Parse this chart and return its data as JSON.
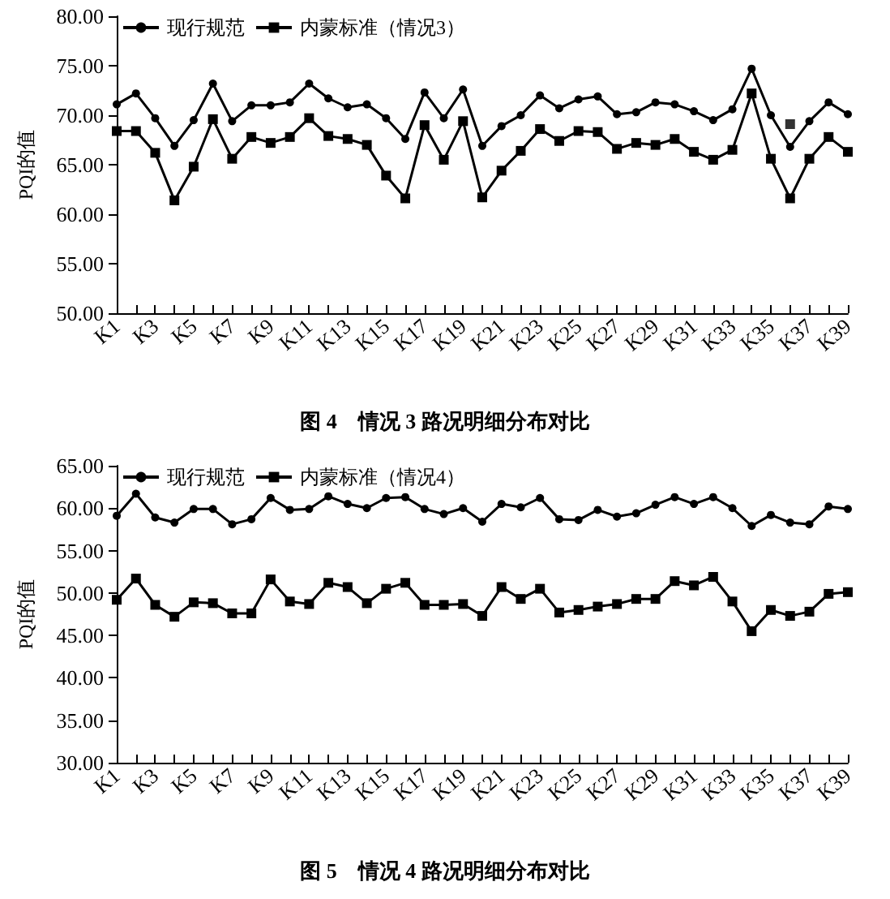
{
  "chart_data": [
    {
      "type": "line",
      "title": "图 4　情况 3 路况明细分布对比",
      "ylabel": "PQI的值",
      "categories": [
        "K1",
        null,
        "K3",
        null,
        "K5",
        null,
        "K7",
        null,
        "K9",
        null,
        "K11",
        null,
        "K13",
        null,
        "K15",
        null,
        "K17",
        null,
        "K19",
        null,
        "K21",
        null,
        "K23",
        null,
        "K25",
        null,
        "K27",
        null,
        "K29",
        null,
        "K31",
        null,
        "K33",
        null,
        "K35",
        null,
        "K37",
        null,
        "K39"
      ],
      "series": [
        {
          "name": "现行规范",
          "color": "#000000",
          "marker": "circle",
          "values": [
            71.1,
            72.2,
            69.7,
            66.9,
            69.5,
            73.2,
            69.4,
            71.0,
            71.0,
            71.3,
            73.2,
            71.7,
            70.8,
            71.1,
            69.7,
            67.6,
            72.3,
            69.7,
            72.6,
            66.9,
            68.9,
            70.0,
            72.0,
            70.7,
            71.6,
            71.9,
            70.1,
            70.3,
            71.3,
            71.1,
            70.4,
            69.5,
            70.6,
            74.7,
            70.0,
            66.8,
            69.4,
            71.3,
            70.1
          ]
        },
        {
          "name": "内蒙标准（情况3）",
          "color": "#000000",
          "marker": "square",
          "values": [
            68.4,
            68.4,
            66.2,
            61.4,
            64.8,
            69.6,
            65.6,
            67.8,
            67.2,
            67.8,
            69.7,
            67.9,
            67.6,
            67.0,
            63.9,
            61.6,
            69.0,
            65.5,
            69.4,
            61.7,
            64.4,
            66.4,
            68.6,
            67.4,
            68.4,
            68.3,
            66.6,
            67.2,
            67.0,
            67.6,
            66.3,
            65.5,
            66.5,
            72.2,
            65.6,
            61.6,
            65.6,
            67.8,
            66.3
          ]
        },
        {
          "type": "scatter",
          "color": "#000000",
          "marker": "square",
          "values": [
            null,
            null,
            null,
            null,
            null,
            null,
            null,
            null,
            null,
            null,
            null,
            null,
            null,
            null,
            null,
            null,
            null,
            null,
            null,
            null,
            null,
            null,
            null,
            null,
            null,
            null,
            null,
            null,
            null,
            null,
            null,
            null,
            null,
            null,
            null,
            69.1,
            null,
            null,
            null
          ]
        }
      ],
      "ylim": [
        50,
        80
      ],
      "yticks": [
        {
          "value": 50,
          "label": "50.00"
        },
        {
          "value": 55,
          "label": "55.00"
        },
        {
          "value": 60,
          "label": "60.00"
        },
        {
          "value": 65,
          "label": "65.00"
        },
        {
          "value": 70,
          "label": "70.00"
        },
        {
          "value": 75,
          "label": "75.00"
        },
        {
          "value": 80,
          "label": "80.00"
        }
      ],
      "grid": false,
      "legend": "top"
    },
    {
      "type": "line",
      "title": "图 5　情况 4 路况明细分布对比",
      "ylabel": "PQI的值",
      "categories": [
        "K1",
        null,
        "K3",
        null,
        "K5",
        null,
        "K7",
        null,
        "K9",
        null,
        "K11",
        null,
        "K13",
        null,
        "K15",
        null,
        "K17",
        null,
        "K19",
        null,
        "K21",
        null,
        "K23",
        null,
        "K25",
        null,
        "K27",
        null,
        "K29",
        null,
        "K31",
        null,
        "K33",
        null,
        "K35",
        null,
        "K37",
        null,
        "K39"
      ],
      "series": [
        {
          "name": "现行规范",
          "color": "#000000",
          "marker": "circle",
          "values": [
            59.1,
            61.7,
            58.9,
            58.3,
            59.9,
            59.9,
            58.1,
            58.7,
            61.2,
            59.8,
            59.9,
            61.4,
            60.5,
            60.0,
            61.2,
            61.3,
            59.9,
            59.3,
            60.0,
            58.4,
            60.5,
            60.1,
            61.2,
            58.7,
            58.6,
            59.8,
            59.0,
            59.4,
            60.4,
            61.3,
            60.5,
            61.3,
            60.0,
            57.9,
            59.2,
            58.3,
            58.1,
            60.2,
            59.9
          ]
        },
        {
          "name": "内蒙标准（情况4）",
          "color": "#000000",
          "marker": "square",
          "values": [
            49.2,
            51.7,
            48.6,
            47.2,
            48.9,
            48.8,
            47.6,
            47.6,
            51.6,
            49.0,
            48.7,
            51.2,
            50.7,
            48.8,
            50.5,
            51.2,
            48.6,
            48.6,
            48.7,
            47.3,
            50.7,
            49.3,
            50.5,
            47.7,
            48.0,
            48.4,
            48.7,
            49.3,
            49.3,
            51.4,
            50.9,
            51.9,
            49.0,
            45.5,
            48.0,
            47.3,
            47.8,
            49.9,
            50.1
          ]
        }
      ],
      "ylim": [
        30,
        65
      ],
      "yticks": [
        {
          "value": 30,
          "label": "30.00"
        },
        {
          "value": 35,
          "label": "35.00"
        },
        {
          "value": 40,
          "label": "40.00"
        },
        {
          "value": 45,
          "label": "45.00"
        },
        {
          "value": 50,
          "label": "50.00"
        },
        {
          "value": 55,
          "label": "55.00"
        },
        {
          "value": 60,
          "label": "60.00"
        },
        {
          "value": 65,
          "label": "65.00"
        }
      ],
      "grid": false,
      "legend": "top"
    }
  ]
}
